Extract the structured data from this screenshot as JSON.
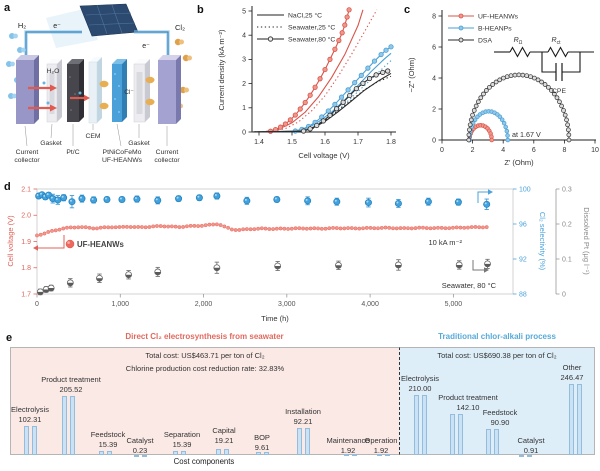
{
  "panel_labels": {
    "a": "a",
    "b": "b",
    "c": "c",
    "d": "d",
    "e": "e"
  },
  "panel_a": {
    "gas_left": "H₂",
    "gas_right": "Cl₂",
    "electron_left": "e⁻",
    "electron_right": "e⁻",
    "water": "H₂O",
    "chloride": "Cl⁻",
    "layer_labels": {
      "cc_left_1": "Current",
      "cc_left_2": "collector",
      "gasket_left": "Gasket",
      "ptc": "Pt/C",
      "cem": "CEM",
      "heanw_1": "PtNiCoFeMo",
      "heanw_2": "UF-HEANWs",
      "gasket_right": "Gasket",
      "cc_right_1": "Current",
      "cc_right_2": "collector"
    }
  },
  "chart_data": [
    {
      "id": "b",
      "type": "line",
      "xlabel": "Cell voltage (V)",
      "ylabel": "Current density (kA m⁻²)",
      "xlim": [
        1.38,
        1.81
      ],
      "ylim": [
        0,
        5.2
      ],
      "xticks": [
        "1.4",
        "1.5",
        "1.6",
        "1.7",
        "1.8"
      ],
      "yticks": [
        "0",
        "1",
        "2",
        "3",
        "4",
        "5"
      ],
      "legend": [
        {
          "label": "NaCl,25 °C",
          "style": "solid"
        },
        {
          "label": "Seawater,25 °C",
          "style": "dotted"
        },
        {
          "label": "Seawater,80 °C",
          "style": "marker"
        }
      ],
      "colors": {
        "red": "#d9544a",
        "blue": "#4a9fd4",
        "black": "#2b2b2b"
      },
      "marker_fills": {
        "red": "#f0978c",
        "blue": "#90c8ea",
        "black": "#dcdcdc"
      },
      "series": [
        {
          "name": "UF-HEANWs NaCl,25 °C",
          "color_key": "red",
          "style": "solid",
          "points": [
            [
              1.38,
              0
            ],
            [
              1.42,
              0.02
            ],
            [
              1.46,
              0.12
            ],
            [
              1.5,
              0.38
            ],
            [
              1.54,
              0.82
            ],
            [
              1.58,
              1.45
            ],
            [
              1.62,
              2.25
            ],
            [
              1.66,
              3.2
            ],
            [
              1.7,
              4.4
            ],
            [
              1.715,
              5.05
            ]
          ]
        },
        {
          "name": "UF-HEANWs Seawater,25 °C",
          "color_key": "red",
          "style": "dotted",
          "points": [
            [
              1.38,
              0
            ],
            [
              1.44,
              0.03
            ],
            [
              1.48,
              0.14
            ],
            [
              1.52,
              0.42
            ],
            [
              1.56,
              0.88
            ],
            [
              1.6,
              1.5
            ],
            [
              1.64,
              2.3
            ],
            [
              1.68,
              3.2
            ],
            [
              1.72,
              4.15
            ],
            [
              1.757,
              5.05
            ]
          ]
        },
        {
          "name": "UF-HEANWs Seawater,80 °C",
          "color_key": "red",
          "style": "marker",
          "points": [
            [
              1.435,
              0.03
            ],
            [
              1.45,
              0.1
            ],
            [
              1.465,
              0.2
            ],
            [
              1.48,
              0.33
            ],
            [
              1.495,
              0.5
            ],
            [
              1.51,
              0.7
            ],
            [
              1.525,
              0.95
            ],
            [
              1.54,
              1.22
            ],
            [
              1.555,
              1.52
            ],
            [
              1.57,
              1.85
            ],
            [
              1.585,
              2.2
            ],
            [
              1.6,
              2.58
            ],
            [
              1.615,
              3.0
            ],
            [
              1.63,
              3.42
            ],
            [
              1.642,
              3.78
            ],
            [
              1.652,
              4.1
            ],
            [
              1.66,
              4.42
            ],
            [
              1.667,
              4.75
            ],
            [
              1.673,
              5.05
            ]
          ]
        },
        {
          "name": "B-HEANPs NaCl,25 °C",
          "color_key": "blue",
          "style": "solid",
          "points": [
            [
              1.38,
              0
            ],
            [
              1.5,
              0.02
            ],
            [
              1.54,
              0.14
            ],
            [
              1.58,
              0.42
            ],
            [
              1.62,
              0.82
            ],
            [
              1.66,
              1.33
            ],
            [
              1.7,
              1.92
            ],
            [
              1.74,
              2.5
            ],
            [
              1.78,
              3.02
            ],
            [
              1.8,
              3.25
            ]
          ]
        },
        {
          "name": "B-HEANPs Seawater,25 °C",
          "color_key": "blue",
          "style": "dotted",
          "points": [
            [
              1.38,
              0
            ],
            [
              1.5,
              0.02
            ],
            [
              1.54,
              0.12
            ],
            [
              1.58,
              0.36
            ],
            [
              1.62,
              0.72
            ],
            [
              1.66,
              1.16
            ],
            [
              1.7,
              1.67
            ],
            [
              1.74,
              2.18
            ],
            [
              1.78,
              2.7
            ],
            [
              1.8,
              2.95
            ]
          ]
        },
        {
          "name": "B-HEANPs Seawater,80 °C",
          "color_key": "blue",
          "style": "marker",
          "points": [
            [
              1.51,
              0.04
            ],
            [
              1.53,
              0.11
            ],
            [
              1.55,
              0.23
            ],
            [
              1.57,
              0.4
            ],
            [
              1.59,
              0.62
            ],
            [
              1.61,
              0.87
            ],
            [
              1.63,
              1.14
            ],
            [
              1.65,
              1.44
            ],
            [
              1.67,
              1.74
            ],
            [
              1.69,
              2.04
            ],
            [
              1.71,
              2.34
            ],
            [
              1.73,
              2.64
            ],
            [
              1.75,
              2.93
            ],
            [
              1.77,
              3.2
            ],
            [
              1.785,
              3.38
            ],
            [
              1.8,
              3.52
            ]
          ]
        },
        {
          "name": "DSA NaCl,25 °C",
          "color_key": "black",
          "style": "solid",
          "points": [
            [
              1.38,
              0
            ],
            [
              1.52,
              0.02
            ],
            [
              1.56,
              0.14
            ],
            [
              1.6,
              0.44
            ],
            [
              1.64,
              0.84
            ],
            [
              1.68,
              1.28
            ],
            [
              1.72,
              1.73
            ],
            [
              1.76,
              2.1
            ],
            [
              1.8,
              2.42
            ]
          ]
        },
        {
          "name": "DSA Seawater,25 °C",
          "color_key": "black",
          "style": "dotted",
          "points": [
            [
              1.38,
              0
            ],
            [
              1.52,
              0.02
            ],
            [
              1.56,
              0.12
            ],
            [
              1.6,
              0.47
            ],
            [
              1.64,
              0.89
            ],
            [
              1.68,
              1.32
            ],
            [
              1.72,
              1.75
            ],
            [
              1.76,
              2.08
            ],
            [
              1.8,
              2.3
            ]
          ]
        },
        {
          "name": "DSA Seawater,80 °C",
          "color_key": "black",
          "style": "marker",
          "points": [
            [
              1.535,
              0.04
            ],
            [
              1.555,
              0.13
            ],
            [
              1.575,
              0.27
            ],
            [
              1.595,
              0.46
            ],
            [
              1.615,
              0.69
            ],
            [
              1.635,
              0.96
            ],
            [
              1.655,
              1.23
            ],
            [
              1.675,
              1.51
            ],
            [
              1.695,
              1.79
            ],
            [
              1.715,
              2.01
            ],
            [
              1.735,
              2.21
            ],
            [
              1.755,
              2.36
            ],
            [
              1.775,
              2.46
            ],
            [
              1.79,
              2.52
            ]
          ]
        }
      ]
    },
    {
      "id": "c",
      "type": "scatter",
      "xlabel": "Z′ (Ohm)",
      "ylabel": "−Z″ (Ohm)",
      "xlim": [
        0,
        10
      ],
      "ylim": [
        0,
        8.8
      ],
      "xticks": [
        "0",
        "2",
        "4",
        "6",
        "8",
        "10"
      ],
      "yticks": [
        "0",
        "2",
        "4",
        "6",
        "8"
      ],
      "annotation": "at 1.67 V",
      "circuit": {
        "r1_base": "R",
        "r1_sub": "Ω",
        "r2_base": "R",
        "r2_sub": "ct",
        "cpe": "CPE"
      },
      "colors": {
        "red": "#d9544a",
        "blue": "#4a9fd4",
        "black": "#2b2b2b"
      },
      "marker_fills": {
        "red": "#f0978c",
        "blue": "#90c8ea",
        "black": "#dcdcdc"
      },
      "series": [
        {
          "name": "UF-HEANWs",
          "color_key": "red",
          "arc": {
            "start": 1.8,
            "end": 3.25,
            "height": 0.95
          }
        },
        {
          "name": "B-HEANPs",
          "color_key": "blue",
          "arc": {
            "start": 1.8,
            "end": 4.3,
            "height": 1.85
          }
        },
        {
          "name": "DSA",
          "color_key": "black",
          "arc": {
            "start": 1.75,
            "end": 8.3,
            "height": 4.2
          }
        }
      ]
    },
    {
      "id": "d",
      "type": "scatter-line",
      "xlabel": "Time (h)",
      "xlim": [
        0,
        5716
      ],
      "xticks": [
        [
          0,
          "0"
        ],
        [
          1000,
          "1,000"
        ],
        [
          2000,
          "2,000"
        ],
        [
          3000,
          "3,000"
        ],
        [
          4000,
          "4,000"
        ],
        [
          5000,
          "5,000"
        ]
      ],
      "axes": {
        "left": {
          "label": "Cell voltage (V)",
          "lim": [
            1.7,
            2.1
          ],
          "ticks": [
            "1.7",
            "1.8",
            "1.9",
            "2.0",
            "2.1"
          ],
          "color": "#e0635a"
        },
        "right1": {
          "label": "Cl₂ selectivity (%)",
          "lim": [
            88,
            100
          ],
          "ticks": [
            "88",
            "92",
            "96",
            "100"
          ],
          "color": "#4aa3db"
        },
        "right2": {
          "label": "Dissolved Pt (μg l⁻¹)",
          "lim": [
            0,
            0.3
          ],
          "ticks": [
            "0",
            "0.1",
            "0.2",
            "0.3"
          ],
          "color": "#8a8a8a"
        }
      },
      "annotations": {
        "legend": "UF-HEANWs",
        "current": "10 kA m⁻²",
        "electrolyte": "Seawater, 80 °C"
      },
      "voltage_series": [
        [
          0,
          1.923
        ],
        [
          80,
          1.93
        ],
        [
          160,
          1.938
        ],
        [
          240,
          1.944
        ],
        [
          320,
          1.95
        ],
        [
          400,
          1.953
        ],
        [
          500,
          1.955
        ],
        [
          600,
          1.953
        ],
        [
          700,
          1.95
        ],
        [
          800,
          1.953
        ],
        [
          900,
          1.955
        ],
        [
          1000,
          1.954
        ],
        [
          1100,
          1.957
        ],
        [
          1200,
          1.954
        ],
        [
          1300,
          1.955
        ],
        [
          1400,
          1.957
        ],
        [
          1500,
          1.959
        ],
        [
          1600,
          1.957
        ],
        [
          1700,
          1.955
        ],
        [
          1800,
          1.958
        ],
        [
          1900,
          1.959
        ],
        [
          2000,
          1.961
        ],
        [
          2100,
          1.964
        ],
        [
          2180,
          1.967
        ],
        [
          2260,
          1.955
        ],
        [
          2340,
          1.946
        ],
        [
          2420,
          1.944
        ],
        [
          2500,
          1.946
        ],
        [
          2600,
          1.948
        ],
        [
          2700,
          1.949
        ],
        [
          2850,
          1.948
        ],
        [
          3000,
          1.949
        ],
        [
          3200,
          1.95
        ],
        [
          3400,
          1.949
        ],
        [
          3600,
          1.951
        ],
        [
          3800,
          1.95
        ],
        [
          4000,
          1.951
        ],
        [
          4200,
          1.952
        ],
        [
          4400,
          1.95
        ],
        [
          4600,
          1.952
        ],
        [
          4800,
          1.951
        ],
        [
          5000,
          1.952
        ],
        [
          5200,
          1.954
        ],
        [
          5400,
          1.955
        ]
      ],
      "selectivity_series": [
        [
          20,
          99.2,
          0.25
        ],
        [
          60,
          99.35,
          0.2
        ],
        [
          100,
          99.1,
          0.3
        ],
        [
          140,
          99.3,
          0.25
        ],
        [
          190,
          98.9,
          0.5
        ],
        [
          250,
          98.75,
          0.5
        ],
        [
          320,
          99.0,
          0.35
        ],
        [
          420,
          98.55,
          0.7
        ],
        [
          540,
          98.9,
          0.4
        ],
        [
          680,
          98.75,
          0.35
        ],
        [
          840,
          98.8,
          0.3
        ],
        [
          1020,
          98.8,
          0.3
        ],
        [
          1200,
          98.85,
          0.35
        ],
        [
          1450,
          98.7,
          0.4
        ],
        [
          1700,
          98.9,
          0.3
        ],
        [
          1950,
          99.0,
          0.3
        ],
        [
          2160,
          99.2,
          0.35
        ],
        [
          2520,
          98.65,
          0.4
        ],
        [
          2880,
          98.8,
          0.3
        ],
        [
          3250,
          98.65,
          0.45
        ],
        [
          3600,
          98.55,
          0.4
        ],
        [
          3980,
          98.45,
          0.5
        ],
        [
          4340,
          98.35,
          0.45
        ],
        [
          4700,
          98.55,
          0.4
        ],
        [
          5060,
          98.5,
          0.35
        ],
        [
          5400,
          98.25,
          0.6
        ]
      ],
      "pt_series": [
        [
          40,
          0.006,
          0.008
        ],
        [
          110,
          0.013,
          0.008
        ],
        [
          170,
          0.017,
          0.008
        ],
        [
          400,
          0.032,
          0.012
        ],
        [
          750,
          0.045,
          0.012
        ],
        [
          1100,
          0.055,
          0.012
        ],
        [
          1450,
          0.063,
          0.013
        ],
        [
          2160,
          0.075,
          0.016
        ],
        [
          2890,
          0.08,
          0.013
        ],
        [
          3620,
          0.082,
          0.012
        ],
        [
          4340,
          0.083,
          0.015
        ],
        [
          5070,
          0.083,
          0.012
        ],
        [
          5410,
          0.086,
          0.013
        ]
      ]
    },
    {
      "id": "e",
      "type": "bar",
      "xlabel": "Cost components",
      "groups": [
        {
          "title": "Direct Cl₂ electrosynthesis from seawater",
          "title_color": "#e0695e",
          "bg": "#fbe9e5",
          "notes": [
            "Total cost: US$463.71 per ton of Cl₂",
            "Chlorine production cost reduction rate: 32.83%"
          ],
          "categories": [
            "Electrolysis",
            "Product treatment",
            "Feedstock",
            "Catalyst",
            "Separation",
            "Capital",
            "BOP",
            "Installation",
            "Maintenance",
            "Operation"
          ],
          "values": [
            102.31,
            205.52,
            15.39,
            0.23,
            15.39,
            19.21,
            9.61,
            92.21,
            1.92,
            1.92
          ],
          "value_labels": [
            "102.31",
            "205.52",
            "15.39",
            "0.23",
            "15.39",
            "19.21",
            "9.61",
            "92.21",
            "1.92",
            "1.92"
          ]
        },
        {
          "title": "Traditional chlor-alkali process",
          "title_color": "#56aad8",
          "bg": "#ddeef9",
          "notes": [
            "Total cost: US$690.38 per ton of Cl₂"
          ],
          "categories": [
            "Electrolysis",
            "Product treatment",
            "Feedstock",
            "Catalyst",
            "Other"
          ],
          "values": [
            210.0,
            142.1,
            90.9,
            0.91,
            246.47
          ],
          "value_labels": [
            "210.00",
            "142.10",
            "90.90",
            "0.91",
            "246.47"
          ]
        }
      ]
    }
  ]
}
